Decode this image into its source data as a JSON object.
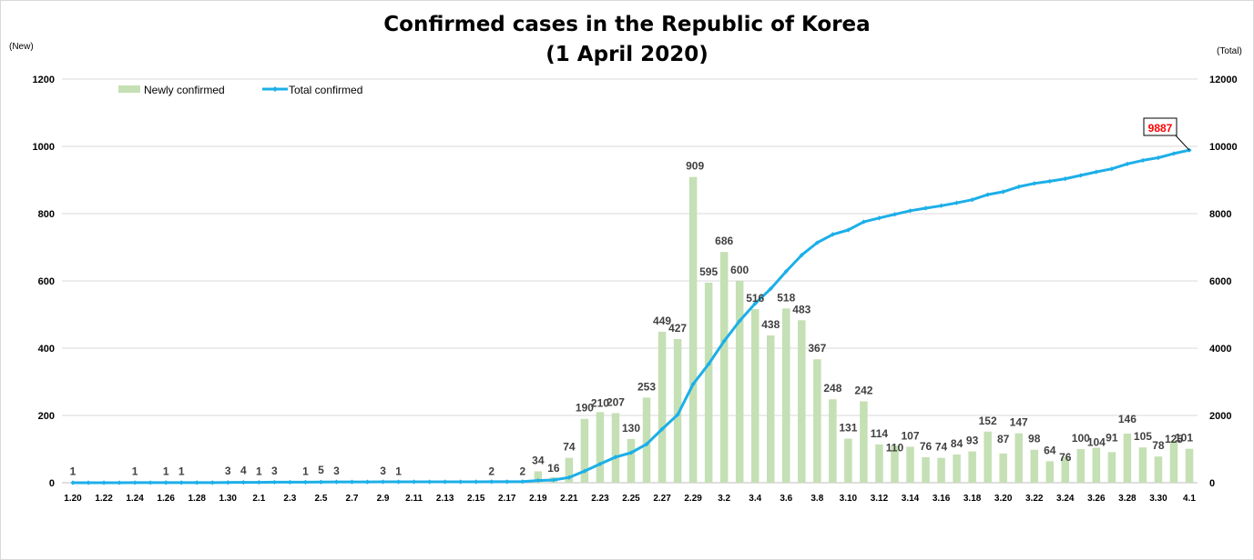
{
  "chart_data": {
    "type": "bar",
    "title": "Confirmed cases in the Republic of Korea",
    "subtitle": "(1 April 2020)",
    "y_left_unit": "(New)",
    "y_right_unit": "(Total)",
    "y_left_ticks": [
      "0",
      "200",
      "400",
      "600",
      "800",
      "1000",
      "1200"
    ],
    "y_right_ticks": [
      "0",
      "2000",
      "4000",
      "6000",
      "8000",
      "10000",
      "12000"
    ],
    "ylim_left": [
      0,
      1200
    ],
    "ylim_right": [
      0,
      12000
    ],
    "grid": true,
    "legend_position": "top-left",
    "callout": "9887",
    "colors": {
      "bar": "#c5e0b4",
      "line": "#1cafe8",
      "highlight": "#ff0000"
    },
    "categories": [
      "1.20",
      "1.21",
      "1.22",
      "1.23",
      "1.24",
      "1.25",
      "1.26",
      "1.27",
      "1.28",
      "1.29",
      "1.30",
      "1.31",
      "2.1",
      "2.2",
      "2.3",
      "2.4",
      "2.5",
      "2.6",
      "2.7",
      "2.8",
      "2.9",
      "2.10",
      "2.11",
      "2.12",
      "2.13",
      "2.14",
      "2.15",
      "2.16",
      "2.17",
      "2.18",
      "2.19",
      "2.20",
      "2.21",
      "2.22",
      "2.23",
      "2.24",
      "2.25",
      "2.26",
      "2.27",
      "2.28",
      "2.29",
      "3.1",
      "3.2",
      "3.3",
      "3.4",
      "3.5",
      "3.6",
      "3.7",
      "3.8",
      "3.9",
      "3.10",
      "3.11",
      "3.12",
      "3.13",
      "3.14",
      "3.15",
      "3.16",
      "3.17",
      "3.18",
      "3.19",
      "3.20",
      "3.21",
      "3.22",
      "3.23",
      "3.24",
      "3.25",
      "3.26",
      "3.27",
      "3.28",
      "3.29",
      "3.30",
      "3.31",
      "4.1"
    ],
    "x_tick_labels": [
      "1.20",
      "1.22",
      "1.24",
      "1.26",
      "1.28",
      "1.30",
      "2.1",
      "2.3",
      "2.5",
      "2.7",
      "2.9",
      "2.11",
      "2.13",
      "2.15",
      "2.17",
      "2.19",
      "2.21",
      "2.23",
      "2.25",
      "2.27",
      "2.29",
      "3.2",
      "3.4",
      "3.6",
      "3.8",
      "3.10",
      "3.12",
      "3.14",
      "3.16",
      "3.18",
      "3.20",
      "3.22",
      "3.24",
      "3.26",
      "3.28",
      "3.30",
      "4.1"
    ],
    "series": [
      {
        "name": "Newly confirmed",
        "axis": "left",
        "values": [
          1,
          0,
          0,
          0,
          1,
          0,
          1,
          1,
          0,
          0,
          3,
          4,
          1,
          3,
          0,
          1,
          5,
          3,
          0,
          0,
          3,
          1,
          0,
          0,
          0,
          0,
          0,
          2,
          0,
          2,
          34,
          16,
          74,
          190,
          210,
          207,
          130,
          253,
          449,
          427,
          909,
          595,
          686,
          600,
          516,
          438,
          518,
          483,
          367,
          248,
          131,
          242,
          114,
          110,
          107,
          76,
          74,
          84,
          93,
          152,
          87,
          147,
          98,
          64,
          76,
          100,
          104,
          91,
          146,
          105,
          78,
          125,
          101
        ],
        "labels": [
          "1",
          "",
          "",
          "",
          "1",
          "",
          "1",
          "1",
          "",
          "",
          "3",
          "4",
          "1",
          "3",
          "",
          "1",
          "5",
          "3",
          "",
          "",
          "3",
          "1",
          "",
          "",
          "",
          "",
          "",
          "2",
          "",
          "2",
          "34",
          "16",
          "74",
          "190",
          "210",
          "207",
          "130",
          "253",
          "449",
          "427",
          "909",
          "595",
          "686",
          "600",
          "516",
          "438",
          "518",
          "483",
          "367",
          "248",
          "131",
          "242",
          "114",
          "110",
          "107",
          "76",
          "74",
          "84",
          "93",
          "152",
          "87",
          "147",
          "98",
          "64",
          "76",
          "100",
          "104",
          "91",
          "146",
          "105",
          "78",
          "125",
          "101"
        ]
      },
      {
        "name": "Total confirmed",
        "axis": "right",
        "values": [
          1,
          1,
          1,
          1,
          2,
          2,
          3,
          4,
          4,
          4,
          7,
          11,
          12,
          15,
          15,
          16,
          21,
          24,
          24,
          24,
          27,
          28,
          28,
          28,
          28,
          28,
          28,
          30,
          30,
          32,
          66,
          82,
          156,
          346,
          556,
          763,
          893,
          1146,
          1595,
          2022,
          2931,
          3526,
          4212,
          4812,
          5328,
          5766,
          6284,
          6767,
          7134,
          7382,
          7513,
          7755,
          7869,
          7979,
          8086,
          8162,
          8236,
          8320,
          8413,
          8565,
          8652,
          8799,
          8897,
          8961,
          9037,
          9137,
          9241,
          9332,
          9478,
          9583,
          9661,
          9786,
          9887
        ]
      }
    ]
  }
}
